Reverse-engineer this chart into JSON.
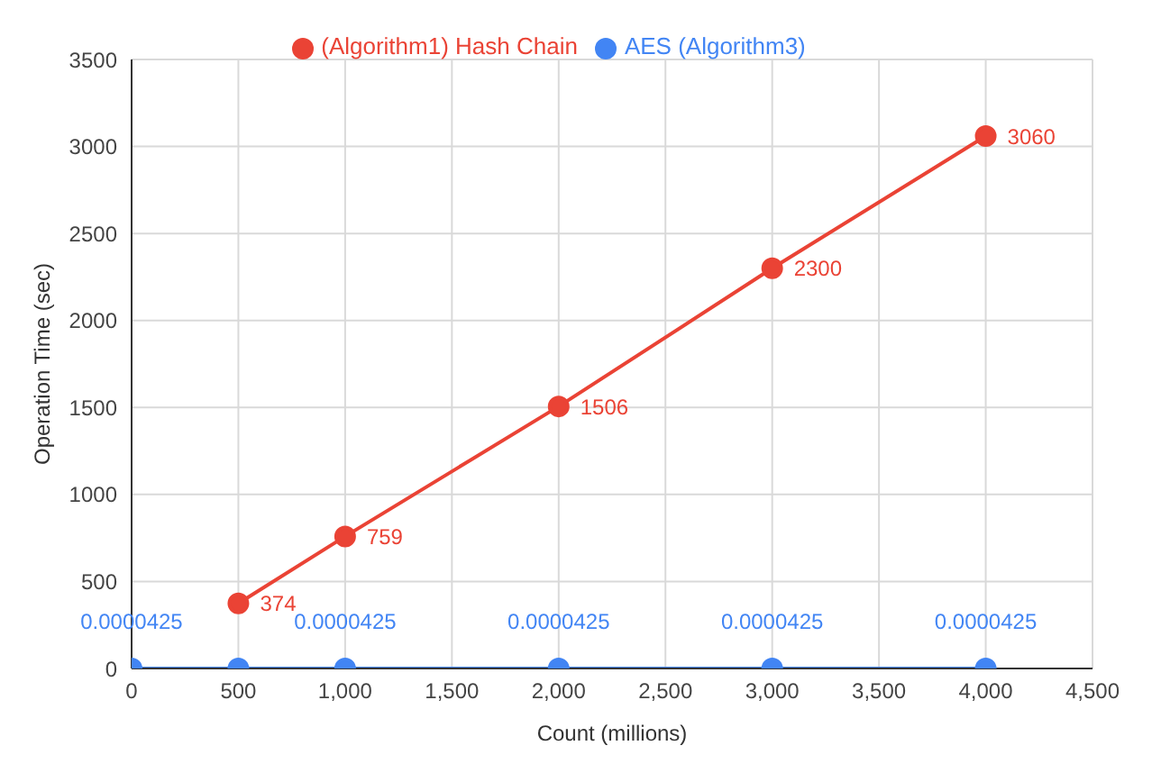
{
  "chart_data": {
    "type": "line",
    "xlabel": "Count (millions)",
    "ylabel": "Operation Time (sec)",
    "xlim": [
      0,
      4500
    ],
    "xticks": [
      {
        "value": 0,
        "label": "0"
      },
      {
        "value": 500,
        "label": "500"
      },
      {
        "value": 1000,
        "label": "1,000"
      },
      {
        "value": 1500,
        "label": "1,500"
      },
      {
        "value": 2000,
        "label": "2,000"
      },
      {
        "value": 2500,
        "label": "2,500"
      },
      {
        "value": 3000,
        "label": "3,000"
      },
      {
        "value": 3500,
        "label": "3,500"
      },
      {
        "value": 4000,
        "label": "4,000"
      },
      {
        "value": 4500,
        "label": "4,500"
      }
    ],
    "ylim": [
      0,
      3500
    ],
    "yticks": [
      0,
      500,
      1000,
      1500,
      2000,
      2500,
      3000,
      3500
    ],
    "grid": true,
    "legend": "top",
    "marker": "circle",
    "line_style": "solid",
    "series": [
      {
        "name": "AES (Algorithm3)",
        "color": "#4285f4",
        "x": [
          0,
          500,
          1000,
          2000,
          3000,
          4000
        ],
        "values": [
          4.25e-05,
          4.25e-05,
          4.25e-05,
          4.25e-05,
          4.25e-05,
          4.25e-05
        ],
        "value_labels": [
          "0.0000425",
          null,
          "0.0000425",
          "0.0000425",
          "0.0000425",
          "0.0000425"
        ]
      },
      {
        "name": "(Algorithm1) Hash Chain",
        "color": "#ea4335",
        "x": [
          500,
          1000,
          2000,
          3000,
          4000
        ],
        "values": [
          374,
          759,
          1506,
          2300,
          3060
        ],
        "value_labels": [
          "374",
          "759",
          "1506",
          "2300",
          "3060"
        ]
      }
    ]
  }
}
